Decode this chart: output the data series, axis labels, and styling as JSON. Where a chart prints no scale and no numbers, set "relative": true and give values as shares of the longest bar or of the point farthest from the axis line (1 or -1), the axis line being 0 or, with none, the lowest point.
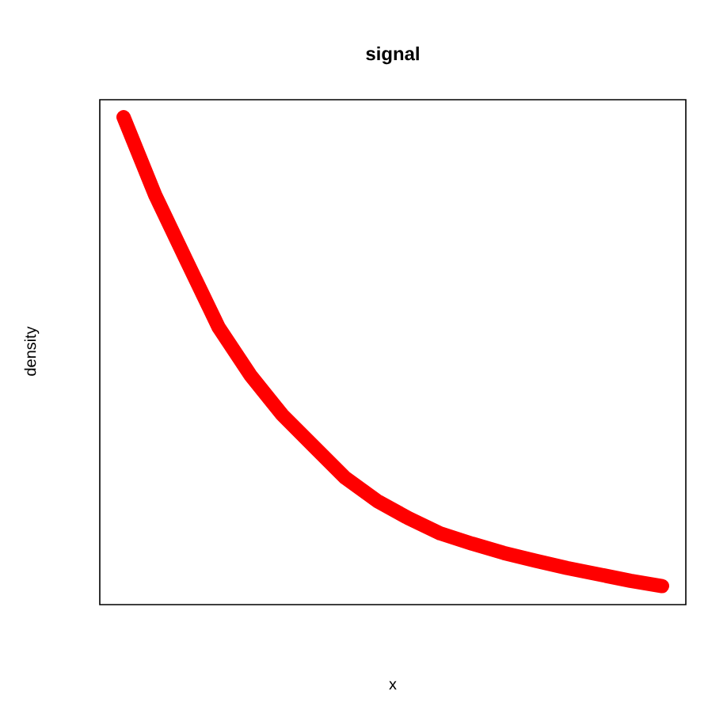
{
  "chart_data": {
    "type": "line",
    "title": "signal",
    "xlabel": "x",
    "ylabel": "density",
    "relative": true,
    "categories": [
      null,
      null,
      null,
      null,
      null,
      null,
      null,
      null,
      null,
      null,
      null,
      null,
      null,
      null,
      null,
      null,
      null,
      null
    ],
    "series": [
      {
        "color": "#ff0000",
        "values": [
          1.0,
          0.84,
          0.704,
          0.569,
          0.471,
          0.39,
          0.325,
          0.26,
          0.213,
          0.177,
          0.146,
          0.125,
          0.106,
          0.09,
          0.075,
          0.062,
          0.049,
          0.038
        ]
      }
    ]
  }
}
